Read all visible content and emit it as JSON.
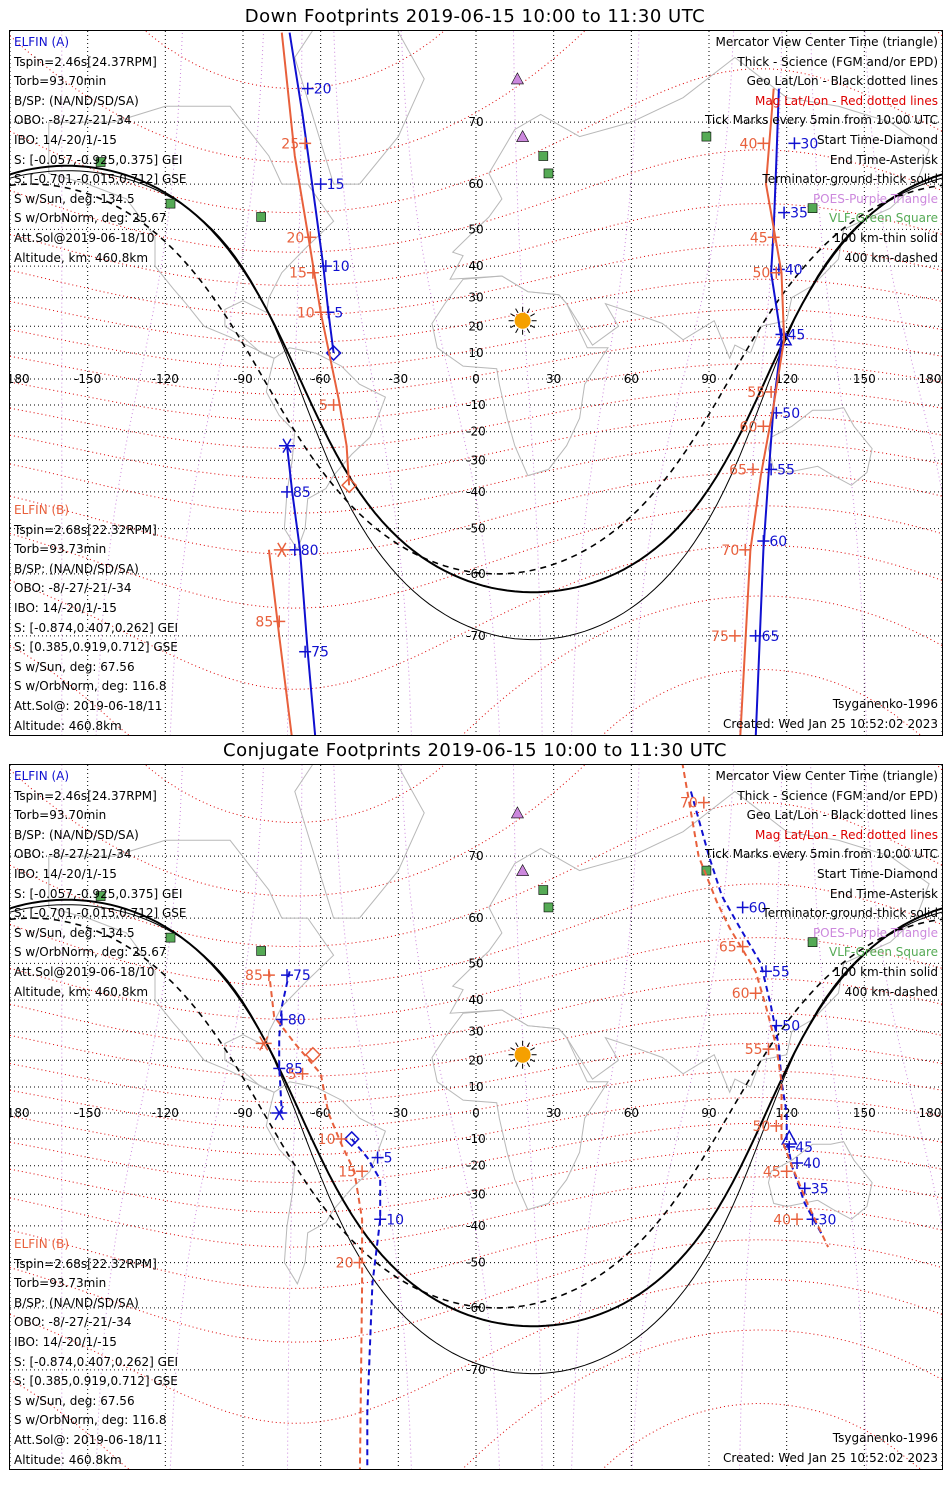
{
  "colors": {
    "elfin_a": "#1010d0",
    "elfin_b": "#e8603c",
    "geo_grid": "#000000",
    "mag_grid": "#dd0000",
    "poes": "#cc88dd",
    "vlf": "#55aa55",
    "coastline": "#b8b8b8",
    "sun": "#f5a000"
  },
  "legend": [
    {
      "text": "Mercator View Center Time (triangle)",
      "color": "#000000"
    },
    {
      "text": "Thick - Science (FGM and/or EPD)",
      "color": "#000000"
    },
    {
      "text": "Geo Lat/Lon - Black dotted lines",
      "color": "#000000"
    },
    {
      "text": "Mag Lat/Lon - Red dotted lines",
      "color": "#dd0000"
    },
    {
      "text": "Tick Marks every 5min from 10:00 UTC",
      "color": "#000000"
    },
    {
      "text": "Start Time-Diamond",
      "color": "#000000"
    },
    {
      "text": "End Time-Asterisk",
      "color": "#000000"
    },
    {
      "text": "Terminator-ground-thick solid",
      "color": "#000000"
    },
    {
      "text": "POES-Purple Triangle",
      "color": "#cc88dd"
    },
    {
      "text": "VLF-Green Square",
      "color": "#55aa55"
    },
    {
      "text": "100 km-thin solid",
      "color": "#000000"
    },
    {
      "text": "400 km-dashed",
      "color": "#000000"
    }
  ],
  "elfin_a": {
    "name": "ELFIN (A)",
    "lines": [
      "Tspin=2.46s[24.37RPM]",
      "Torb=93.70min",
      "B/SP: (NA/ND/SD/SA)",
      "OBO: -8/-27/-21/-34",
      "IBO: 14/-20/1/-15",
      "S: [-0.057,-0.925,0.375] GEI",
      "S: [-0.701,-0.015,0.712] GSE",
      "S w/Sun, deg: 134.5",
      "S w/OrbNorm, deg: 25.67",
      "Att.Sol@2019-06-18/10",
      "Altitude, km: 460.8km"
    ]
  },
  "elfin_b": {
    "name": "ELFIN (B)",
    "lines": [
      "Tspin=2.68s[22.32RPM]",
      "Torb=93.73min",
      "B/SP: (NA/ND/SD/SA)",
      "OBO: -8/-27/-21/-34",
      "IBO: 14/-20/1/-15",
      "S: [-0.874,0.407,0.262] GEI",
      "S: [0.385,0.919,0.712] GSE",
      "S w/Sun, deg: 67.56",
      "S w/OrbNorm, deg: 116.8",
      "Att.Sol@: 2019-06-18/11",
      "Altitude: 460.8km"
    ]
  },
  "model": "Tsyganenko-1996",
  "created": "Created: Wed Jan 25 10:52:02 2023",
  "lon_ticks": [
    "-180",
    "-150",
    "-120",
    "-90",
    "-60",
    "-30",
    "0",
    "30",
    "60",
    "90",
    "120",
    "150",
    "180"
  ],
  "lat_ticks": [
    "70",
    "60",
    "50",
    "40",
    "30",
    "20",
    "10",
    "0",
    "-10",
    "-20",
    "-30",
    "-40",
    "-50",
    "-60",
    "-70"
  ],
  "markers": {
    "poes": [
      [
        16,
        75
      ],
      [
        18,
        68
      ]
    ],
    "vlf": [
      [
        -145,
        64
      ],
      [
        -118,
        56
      ],
      [
        -83,
        53
      ],
      [
        26,
        65
      ],
      [
        28,
        62
      ],
      [
        89,
        68
      ],
      [
        130,
        55
      ]
    ],
    "sun": [
      18,
      22
    ]
  },
  "panels": [
    {
      "title": "Down Footprints 2019-06-15 10:00 to 11:30 UTC",
      "tracks": [
        {
          "sat": "a",
          "segments": [
            [
              [
                -72,
                79
              ],
              [
                -67,
                71
              ],
              [
                -62,
                55
              ],
              [
                -59,
                40
              ],
              [
                -57,
                25
              ],
              [
                -55,
                10
              ]
            ],
            [
              [
                117,
                74
              ],
              [
                116,
                64
              ],
              [
                115,
                50
              ],
              [
                114,
                38
              ],
              [
                118,
                15
              ],
              [
                115,
                -10
              ],
              [
                113,
                -35
              ],
              [
                111,
                -55
              ],
              [
                108,
                -80
              ]
            ]
          ],
          "dashed": false,
          "start": [
            -55,
            10
          ],
          "start_label": "",
          "end": [
            -73,
            -25
          ],
          "triangle": [
            119,
            15
          ],
          "ticks": [
            {
              "lon": -65,
              "lat": 74,
              "label": "20"
            },
            {
              "lon": -60,
              "lat": 60,
              "label": "15"
            },
            {
              "lon": -58,
              "lat": 40,
              "label": "10"
            },
            {
              "lon": -57,
              "lat": 25,
              "label": "5"
            },
            {
              "lon": 123,
              "lat": 67,
              "label": "30"
            },
            {
              "lon": 119,
              "lat": 54,
              "label": "35"
            },
            {
              "lon": 117,
              "lat": 39,
              "label": "40"
            },
            {
              "lon": 118,
              "lat": 17,
              "label": "45"
            },
            {
              "lon": 116,
              "lat": -13,
              "label": "50"
            },
            {
              "lon": 114,
              "lat": -33,
              "label": "55"
            },
            {
              "lon": 111,
              "lat": -53,
              "label": "60"
            },
            {
              "lon": 108,
              "lat": -70,
              "label": "65"
            },
            {
              "lon": -73,
              "lat": -40,
              "label": "85"
            },
            {
              "lon": -70,
              "lat": -55,
              "label": "80"
            },
            {
              "lon": -66,
              "lat": -72,
              "label": "75"
            }
          ]
        },
        {
          "sat": "a",
          "segments": [
            [
              [
                -73,
                -25
              ],
              [
                -71,
                -40
              ],
              [
                -68,
                -55
              ],
              [
                -65,
                -72
              ],
              [
                -62,
                -80
              ]
            ]
          ],
          "dashed": false,
          "ticks": []
        },
        {
          "sat": "b",
          "segments": [
            [
              [
                -75,
                79
              ],
              [
                -70,
                65
              ],
              [
                -64,
                45
              ],
              [
                -60,
                25
              ],
              [
                -53,
                -8
              ],
              [
                -50,
                -25
              ],
              [
                -49,
                -38
              ]
            ],
            [
              [
                115,
                74
              ],
              [
                112,
                60
              ],
              [
                118,
                38
              ],
              [
                119,
                15
              ],
              [
                115,
                -10
              ],
              [
                110,
                -35
              ],
              [
                106,
                -55
              ],
              [
                102,
                -80
              ]
            ]
          ],
          "dashed": false,
          "start": [
            -49,
            -38
          ],
          "start_label": "",
          "end": [
            -75,
            -55
          ],
          "ticks": [
            {
              "lon": -66,
              "lat": 67,
              "label": "25"
            },
            {
              "lon": -64,
              "lat": 48,
              "label": "20"
            },
            {
              "lon": -63,
              "lat": 38,
              "label": "15"
            },
            {
              "lon": -60,
              "lat": 25,
              "label": "10"
            },
            {
              "lon": -55,
              "lat": -10,
              "label": "5"
            },
            {
              "lon": 111,
              "lat": 67,
              "label": "40"
            },
            {
              "lon": 115,
              "lat": 48,
              "label": "45"
            },
            {
              "lon": 116,
              "lat": 38,
              "label": "50"
            },
            {
              "lon": 114,
              "lat": -5,
              "label": "55"
            },
            {
              "lon": 111,
              "lat": -18,
              "label": "60"
            },
            {
              "lon": 107,
              "lat": -33,
              "label": "65"
            },
            {
              "lon": 104,
              "lat": -55,
              "label": "70"
            },
            {
              "lon": 100,
              "lat": -70,
              "label": "75"
            },
            {
              "lon": -76,
              "lat": -68,
              "label": "85"
            }
          ]
        },
        {
          "sat": "b",
          "segments": [
            [
              [
                -80,
                -55
              ],
              [
                -76,
                -70
              ],
              [
                -71,
                -80
              ]
            ]
          ],
          "dashed": false,
          "ticks": []
        }
      ]
    },
    {
      "title": "Conjugate Footprints 2019-06-15 10:00 to 11:30 UTC",
      "tracks": [
        {
          "sat": "a",
          "segments": [
            [
              [
                -72,
                48
              ],
              [
                -75,
                38
              ],
              [
                -76,
                28
              ],
              [
                -76,
                18
              ],
              [
                -75,
                0
              ]
            ],
            [
              [
                83,
                77
              ],
              [
                90,
                70
              ],
              [
                95,
                64
              ],
              [
                102,
                58
              ],
              [
                110,
                50
              ],
              [
                114,
                38
              ],
              [
                117,
                25
              ],
              [
                118,
                12
              ],
              [
                120,
                0
              ],
              [
                120,
                -10
              ],
              [
                122,
                -20
              ],
              [
                127,
                -33
              ],
              [
                134,
                -43
              ]
            ]
          ],
          "dashed": true,
          "start": [
            -48,
            -10
          ],
          "start_label": "",
          "end": [
            -76,
            0
          ],
          "triangle": [
            121,
            -10
          ],
          "ticks": [
            {
              "lon": -73,
              "lat": 47,
              "label": "75"
            },
            {
              "lon": -75,
              "lat": 34,
              "label": "80"
            },
            {
              "lon": -76,
              "lat": 17,
              "label": "85"
            },
            {
              "lon": -38,
              "lat": -17,
              "label": "5"
            },
            {
              "lon": -37,
              "lat": -38,
              "label": "10"
            },
            {
              "lon": -42,
              "lat": -82,
              "label": "15"
            },
            {
              "lon": 103,
              "lat": 62,
              "label": "60"
            },
            {
              "lon": 112,
              "lat": 48,
              "label": "55"
            },
            {
              "lon": 116,
              "lat": 32,
              "label": "50"
            },
            {
              "lon": 121,
              "lat": -13,
              "label": "45"
            },
            {
              "lon": 124,
              "lat": -19,
              "label": "40"
            },
            {
              "lon": 127,
              "lat": -28,
              "label": "35"
            },
            {
              "lon": 130,
              "lat": -38,
              "label": "30"
            }
          ]
        },
        {
          "sat": "a",
          "segments": [
            [
              [
                -48,
                -10
              ],
              [
                -42,
                -17
              ],
              [
                -37,
                -25
              ],
              [
                -37,
                -38
              ],
              [
                -40,
                -55
              ],
              [
                -42,
                -75
              ],
              [
                -42,
                -82
              ]
            ]
          ],
          "dashed": true,
          "ticks": []
        },
        {
          "sat": "b",
          "segments": [
            [
              [
                -80,
                48
              ],
              [
                -78,
                35
              ],
              [
                -70,
                26
              ],
              [
                -60,
                15
              ],
              [
                -57,
                0
              ],
              [
                -52,
                -12
              ],
              [
                -47,
                -22
              ],
              [
                -44,
                -38
              ],
              [
                -44,
                -55
              ],
              [
                -45,
                -82
              ]
            ],
            [
              [
                79,
                80
              ],
              [
                86,
                70
              ],
              [
                93,
                63
              ],
              [
                98,
                58
              ],
              [
                108,
                48
              ],
              [
                112,
                38
              ],
              [
                116,
                25
              ],
              [
                118,
                12
              ],
              [
                118,
                0
              ],
              [
                118,
                -10
              ],
              [
                122,
                -20
              ],
              [
                128,
                -33
              ],
              [
                136,
                -46
              ]
            ]
          ],
          "dashed": true,
          "start": [
            -63,
            22
          ],
          "start_label": "",
          "end": [
            -82,
            26
          ],
          "ticks": [
            {
              "lon": -80,
              "lat": 47,
              "label": "85"
            },
            {
              "lon": -67,
              "lat": 15,
              "label": "5"
            },
            {
              "lon": -52,
              "lat": -10,
              "label": "10"
            },
            {
              "lon": -44,
              "lat": -22,
              "label": "15"
            },
            {
              "lon": -45,
              "lat": -50,
              "label": "20"
            },
            {
              "lon": 88,
              "lat": 76,
              "label": "70"
            },
            {
              "lon": 103,
              "lat": 54,
              "label": "65"
            },
            {
              "lon": 108,
              "lat": 42,
              "label": "60"
            },
            {
              "lon": 113,
              "lat": 24,
              "label": "55"
            },
            {
              "lon": 116,
              "lat": -5,
              "label": "50"
            },
            {
              "lon": 120,
              "lat": -22,
              "label": "45"
            },
            {
              "lon": 124,
              "lat": -38,
              "label": "40"
            }
          ]
        }
      ]
    }
  ]
}
